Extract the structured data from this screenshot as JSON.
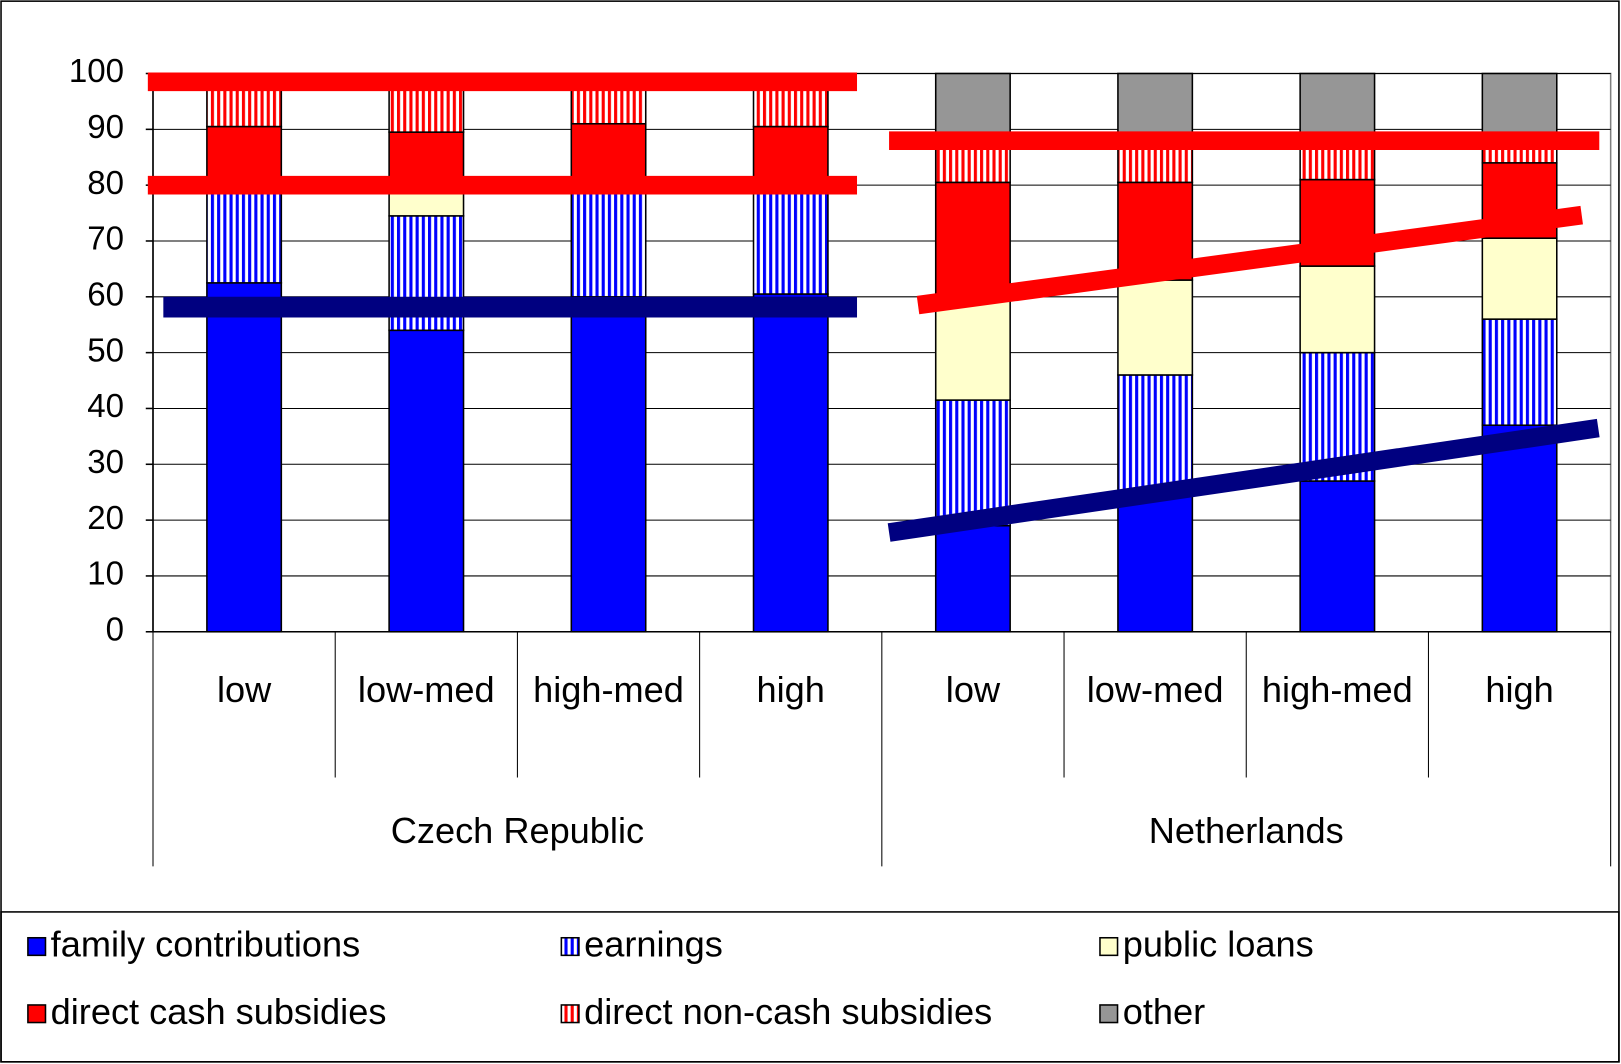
{
  "chart_data": {
    "type": "stacked-bar",
    "groups": [
      {
        "name": "Czech Republic",
        "categories": [
          "low",
          "low-med",
          "high-med",
          "high"
        ]
      },
      {
        "name": "Netherlands",
        "categories": [
          "low",
          "low-med",
          "high-med",
          "high"
        ]
      }
    ],
    "series": [
      {
        "name": "family contributions",
        "color": "#0000ff",
        "pattern": "solid",
        "values": [
          62.5,
          54,
          60,
          60.5,
          19,
          25,
          27,
          37
        ]
      },
      {
        "name": "earnings",
        "color": "#0000ff",
        "pattern": "vertical-stripes",
        "values": [
          17.5,
          20.5,
          20,
          19.5,
          22.5,
          21,
          23,
          19
        ]
      },
      {
        "name": "public loans",
        "color": "#ffffcc",
        "pattern": "solid",
        "values": [
          0,
          5.5,
          0,
          0,
          18,
          17,
          15.5,
          14.5
        ]
      },
      {
        "name": "direct cash subsidies",
        "color": "#ff0000",
        "pattern": "solid",
        "values": [
          10.5,
          9.5,
          11,
          10.5,
          21,
          17.5,
          15.5,
          13.5
        ]
      },
      {
        "name": "direct non-cash subsidies",
        "color": "#ff0000",
        "pattern": "vertical-stripes",
        "values": [
          9.5,
          10.5,
          9,
          9.5,
          8.5,
          8.5,
          8,
          5
        ]
      },
      {
        "name": "other",
        "color": "#969696",
        "pattern": "solid",
        "values": [
          0,
          0,
          0,
          0,
          11,
          11,
          11,
          11
        ]
      }
    ],
    "ylim": [
      0,
      100
    ],
    "yticks": [
      0,
      10,
      20,
      30,
      40,
      50,
      60,
      70,
      80,
      90,
      100
    ],
    "grid": true,
    "legend": "bottom"
  }
}
